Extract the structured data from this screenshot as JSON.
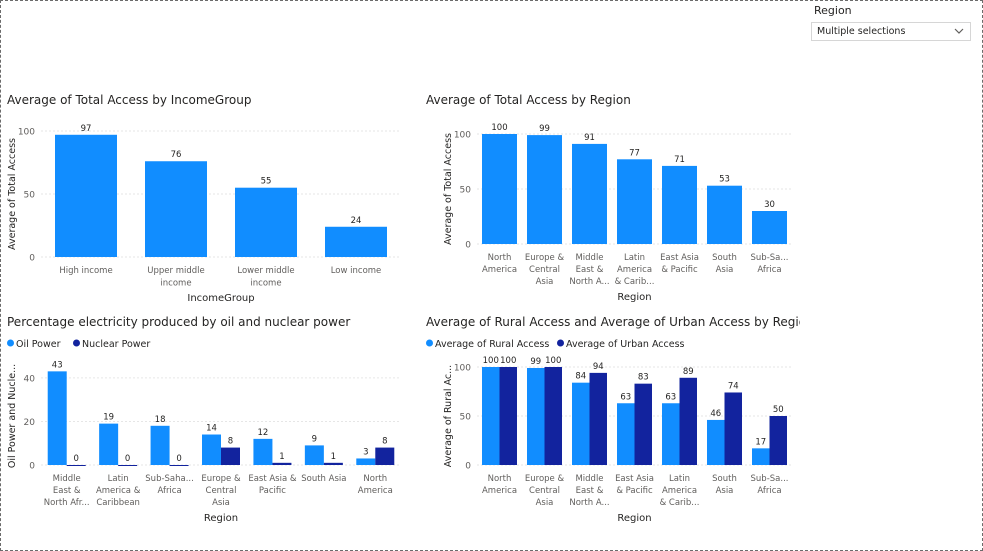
{
  "slicer": {
    "title": "Region",
    "value": "Multiple selections",
    "icon": "chevron-down-icon"
  },
  "colors": {
    "primary": "#118DFF",
    "secondary": "#12239E",
    "text": "#252423",
    "axis": "#605E5C",
    "grid": "#E6E6E6"
  },
  "chart_data": [
    {
      "type": "bar",
      "title": "Average of Total Access by IncomeGroup",
      "xlabel": "IncomeGroup",
      "ylabel": "Average of Total Access",
      "categories": [
        "High income",
        "Upper middle income",
        "Lower middle income",
        "Low income"
      ],
      "category_lines": [
        [
          "High income"
        ],
        [
          "Upper middle",
          "income"
        ],
        [
          "Lower middle",
          "income"
        ],
        [
          "Low income"
        ]
      ],
      "series": [
        {
          "values": [
            97,
            76,
            55,
            24
          ]
        }
      ],
      "data_labels": [
        "97",
        "76",
        "55",
        "24"
      ],
      "yticks": [
        0,
        50,
        100
      ],
      "ylim": [
        0,
        100
      ],
      "grid": true
    },
    {
      "type": "bar",
      "title": "Average of Total Access by Region",
      "xlabel": "Region",
      "ylabel": "Average of Total Access",
      "categories": [
        "North America",
        "Europe & Central Asia",
        "Middle East & North A...",
        "Latin America & Carib...",
        "East Asia & Pacific",
        "South Asia",
        "Sub-Sa... Africa"
      ],
      "category_lines": [
        [
          "North",
          "America"
        ],
        [
          "Europe &",
          "Central",
          "Asia"
        ],
        [
          "Middle",
          "East &",
          "North A..."
        ],
        [
          "Latin",
          "America",
          "& Carib..."
        ],
        [
          "East Asia",
          "& Pacific"
        ],
        [
          "South",
          "Asia"
        ],
        [
          "Sub-Sa...",
          "Africa"
        ]
      ],
      "series": [
        {
          "values": [
            100,
            99,
            91,
            77,
            71,
            53,
            30
          ]
        }
      ],
      "data_labels": [
        "100",
        "99",
        "91",
        "77",
        "71",
        "53",
        "30"
      ],
      "yticks": [
        0,
        50,
        100
      ],
      "ylim": [
        0,
        100
      ],
      "grid": true
    },
    {
      "type": "bar",
      "title": "Percentage electricity produced by oil and nuclear power",
      "xlabel": "Region",
      "ylabel": "Oil Power and Nucle...",
      "legend": "top-left",
      "categories": [
        "Middle East & North Afr...",
        "Latin America & Caribbean",
        "Sub-Saha... Africa",
        "Europe & Central Asia",
        "East Asia & Pacific",
        "South Asia",
        "North America"
      ],
      "category_lines": [
        [
          "Middle",
          "East &",
          "North Afr..."
        ],
        [
          "Latin",
          "America &",
          "Caribbean"
        ],
        [
          "Sub-Saha...",
          "Africa"
        ],
        [
          "Europe &",
          "Central",
          "Asia"
        ],
        [
          "East Asia &",
          "Pacific"
        ],
        [
          "South Asia"
        ],
        [
          "North",
          "America"
        ]
      ],
      "series": [
        {
          "name": "Oil Power",
          "values": [
            43,
            19,
            18,
            14,
            12,
            9,
            3
          ],
          "labels": [
            "43",
            "19",
            "18",
            "14",
            "12",
            "9",
            "3"
          ]
        },
        {
          "name": "Nuclear Power",
          "values": [
            0,
            0,
            0,
            8,
            1,
            1,
            8
          ],
          "labels": [
            "0",
            "0",
            "0",
            "8",
            "1",
            "1",
            "8"
          ]
        }
      ],
      "yticks": [
        0,
        20,
        40
      ],
      "ylim": [
        0,
        45
      ],
      "grid": true
    },
    {
      "type": "bar",
      "title": "Average of Rural Access and Average of Urban Access by Region",
      "xlabel": "Region",
      "ylabel": "Average of Rural Ac...",
      "legend": "top-left",
      "categories": [
        "North America",
        "Europe & Central Asia",
        "Middle East & North A...",
        "East Asia & Pacific",
        "Latin America & Carib...",
        "South Asia",
        "Sub-Sa... Africa"
      ],
      "category_lines": [
        [
          "North",
          "America"
        ],
        [
          "Europe &",
          "Central",
          "Asia"
        ],
        [
          "Middle",
          "East &",
          "North A..."
        ],
        [
          "East Asia",
          "& Pacific"
        ],
        [
          "Latin",
          "America",
          "& Carib..."
        ],
        [
          "South",
          "Asia"
        ],
        [
          "Sub-Sa...",
          "Africa"
        ]
      ],
      "series": [
        {
          "name": "Average of Rural Access",
          "values": [
            100,
            99,
            84,
            63,
            63,
            46,
            17
          ],
          "labels": [
            "100",
            "99",
            "84",
            "63",
            "63",
            "46",
            "17"
          ]
        },
        {
          "name": "Average of Urban Access",
          "values": [
            100,
            100,
            94,
            83,
            89,
            74,
            50
          ],
          "labels": [
            "100",
            "100",
            "94",
            "83",
            "89",
            "74",
            "50"
          ]
        }
      ],
      "yticks": [
        0,
        50,
        100
      ],
      "ylim": [
        0,
        100
      ],
      "grid": true
    }
  ]
}
